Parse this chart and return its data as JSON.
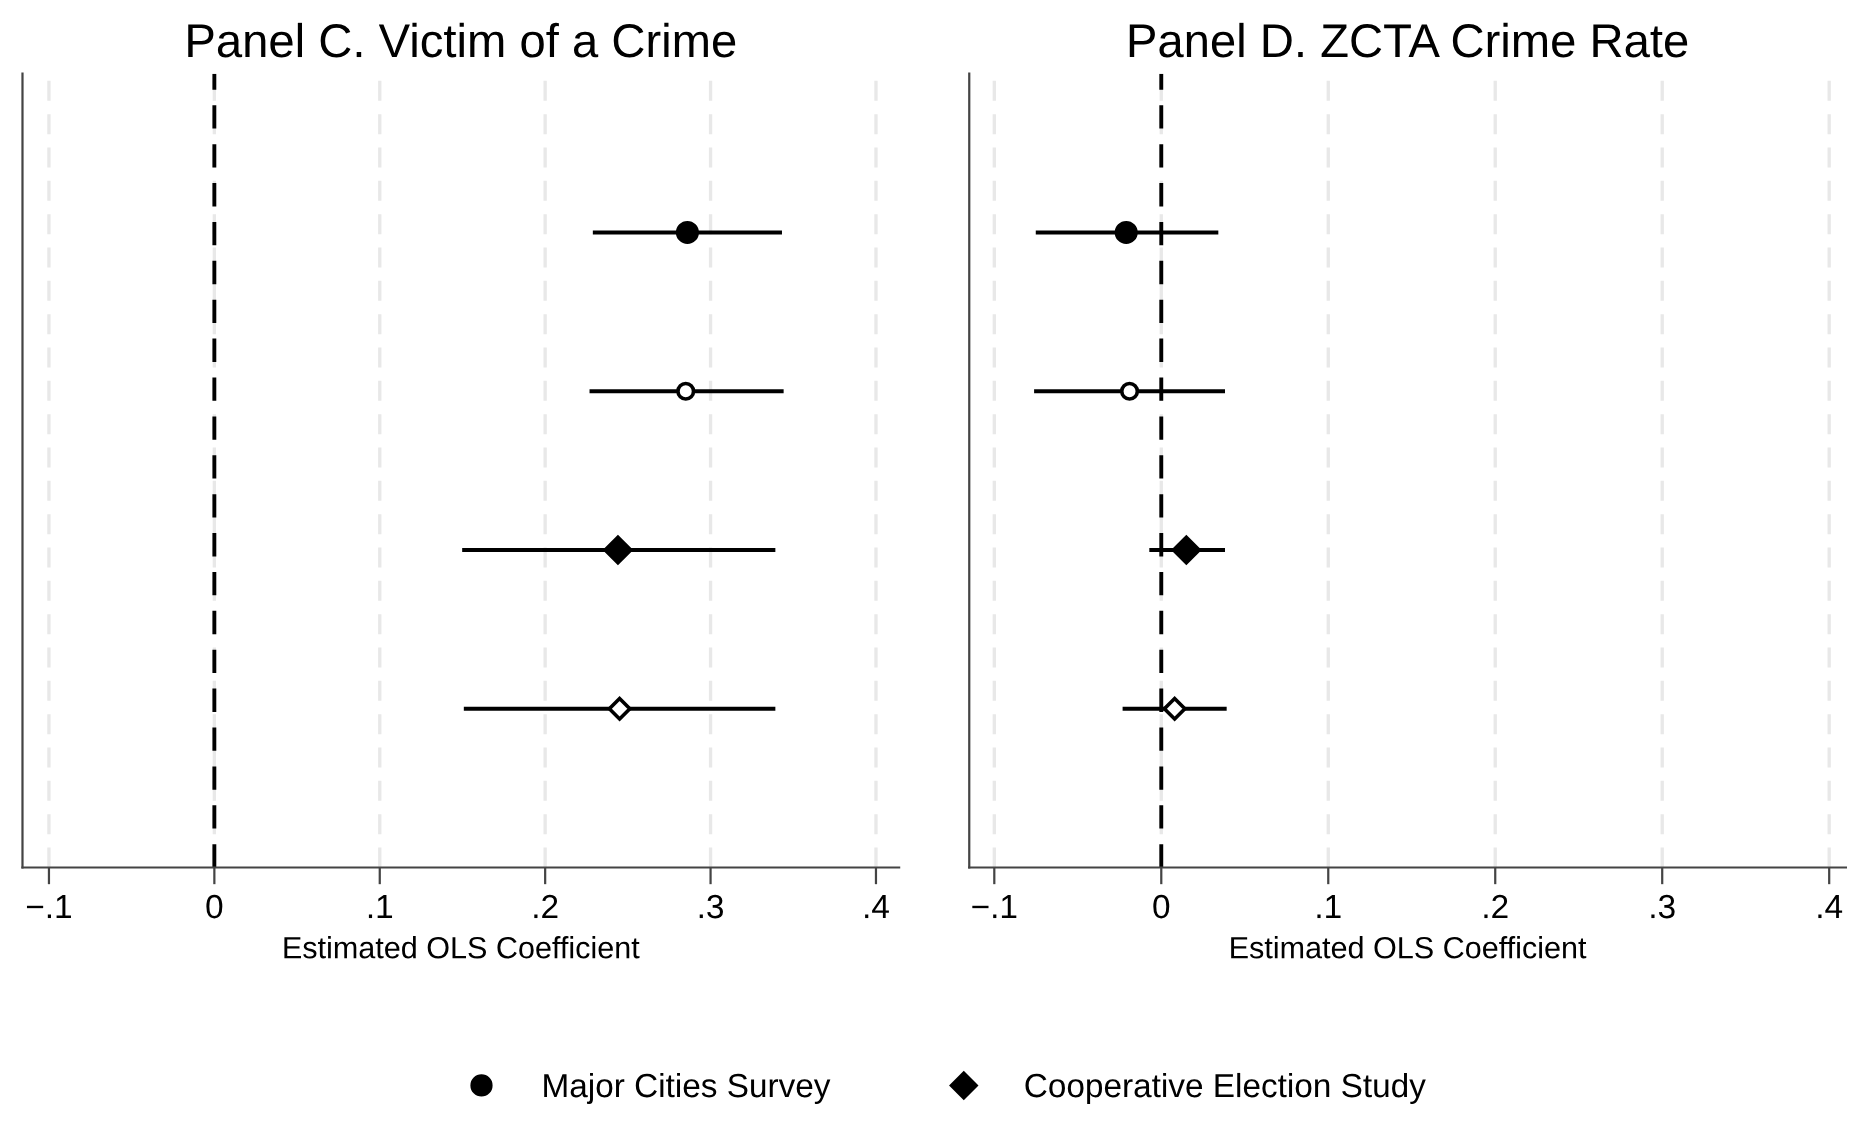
{
  "chart_data": [
    {
      "type": "scatter",
      "orientation": "horizontal",
      "title": "Panel C. Victim of a Crime",
      "xlabel": "Estimated OLS Coefficient",
      "categories": [
        null,
        null,
        null,
        null
      ],
      "xlim": [
        -0.116,
        0.414
      ],
      "xticks": [
        {
          "value": -0.1,
          "label": "−.1"
        },
        0,
        {
          "value": 0.1,
          "label": ".1"
        },
        {
          "value": 0.2,
          "label": ".2"
        },
        {
          "value": 0.3,
          "label": ".3"
        },
        {
          "value": 0.4,
          "label": ".4"
        }
      ],
      "grid": "x",
      "tick_labels": "x",
      "legend": "bottom",
      "ref_lines": [
        {
          "axis": "x",
          "value": 0,
          "color": "#000000",
          "line_style": "dashed"
        }
      ],
      "series": [
        {
          "name": "Major Cities Survey",
          "color": "#000000",
          "marker": "circle",
          "values": [
            0.286,
            null,
            null,
            null
          ],
          "errors": [
            [
              0.23,
              0.342
            ],
            null,
            null,
            null
          ]
        },
        {
          "color": "#ffffff",
          "marker": "circle",
          "values": [
            null,
            0.285,
            null,
            null
          ],
          "errors": [
            null,
            [
              0.228,
              0.343
            ],
            null,
            null
          ]
        },
        {
          "name": "Cooperative Election Study",
          "color": "#000000",
          "marker": "diamond",
          "values": [
            null,
            null,
            0.244,
            null
          ],
          "errors": [
            null,
            null,
            [
              0.151,
              0.338
            ],
            null
          ]
        },
        {
          "color": "#ffffff",
          "marker": "diamond",
          "values": [
            null,
            null,
            null,
            0.245
          ],
          "errors": [
            null,
            null,
            null,
            [
              0.152,
              0.338
            ]
          ]
        }
      ]
    },
    {
      "type": "scatter",
      "orientation": "horizontal",
      "title": "Panel D. ZCTA Crime Rate",
      "xlabel": "Estimated OLS Coefficient",
      "categories": [
        null,
        null,
        null,
        null
      ],
      "xlim": [
        -0.115,
        0.41
      ],
      "xticks": [
        {
          "value": -0.1,
          "label": "−.1"
        },
        0,
        {
          "value": 0.1,
          "label": ".1"
        },
        {
          "value": 0.2,
          "label": ".2"
        },
        {
          "value": 0.3,
          "label": ".3"
        },
        {
          "value": 0.4,
          "label": ".4"
        }
      ],
      "grid": "x",
      "tick_labels": "x",
      "legend": "bottom",
      "ref_lines": [
        {
          "axis": "x",
          "value": 0,
          "color": "#000000",
          "line_style": "dashed"
        }
      ],
      "series": [
        {
          "name": "Major Cities Survey",
          "color": "#000000",
          "marker": "circle",
          "values": [
            -0.021,
            null,
            null,
            null
          ],
          "errors": [
            [
              -0.074,
              0.033
            ],
            null,
            null,
            null
          ]
        },
        {
          "color": "#ffffff",
          "marker": "circle",
          "values": [
            null,
            -0.019,
            null,
            null
          ],
          "errors": [
            null,
            [
              -0.075,
              0.037
            ],
            null,
            null
          ]
        },
        {
          "name": "Cooperative Election Study",
          "color": "#000000",
          "marker": "diamond",
          "values": [
            null,
            null,
            0.015,
            null
          ],
          "errors": [
            null,
            null,
            [
              -0.006,
              0.037
            ],
            null
          ]
        },
        {
          "color": "#ffffff",
          "marker": "diamond",
          "values": [
            null,
            null,
            null,
            0.008
          ],
          "errors": [
            null,
            null,
            null,
            [
              -0.022,
              0.038
            ]
          ]
        }
      ]
    }
  ]
}
